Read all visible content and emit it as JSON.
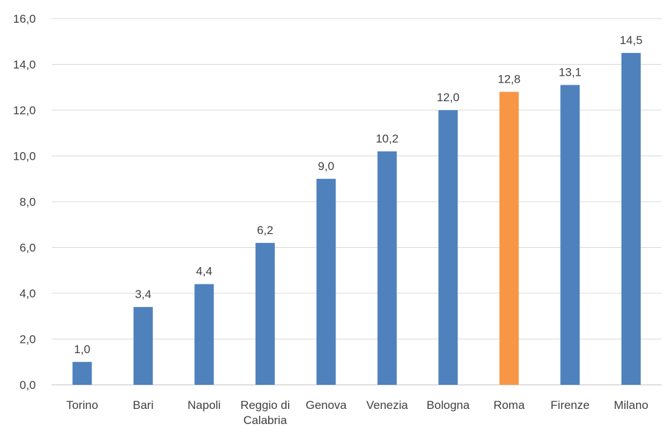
{
  "chart_data": {
    "type": "bar",
    "title": "",
    "xlabel": "",
    "ylabel": "",
    "ylim": [
      0,
      16
    ],
    "ytick_step": 2,
    "ytick_labels": [
      "0,0",
      "2,0",
      "4,0",
      "6,0",
      "8,0",
      "10,0",
      "12,0",
      "14,0",
      "16,0"
    ],
    "grid": true,
    "legend": "none",
    "categories": [
      [
        "Torino"
      ],
      [
        "Bari"
      ],
      [
        "Napoli"
      ],
      [
        "Reggio di",
        "Calabria"
      ],
      [
        "Genova"
      ],
      [
        "Venezia"
      ],
      [
        "Bologna"
      ],
      [
        "Roma"
      ],
      [
        "Firenze"
      ],
      [
        "Milano"
      ]
    ],
    "values": [
      1.0,
      3.4,
      4.4,
      6.2,
      9.0,
      10.2,
      12.0,
      12.8,
      13.1,
      14.5
    ],
    "value_labels": [
      "1,0",
      "3,4",
      "4,4",
      "6,2",
      "9,0",
      "10,2",
      "12,0",
      "12,8",
      "13,1",
      "14,5"
    ],
    "colors": {
      "default": "#4f81bd",
      "highlight": "#f79646",
      "gridline": "#d9d9d9",
      "text": "#404040"
    },
    "highlight_category": "Roma"
  }
}
